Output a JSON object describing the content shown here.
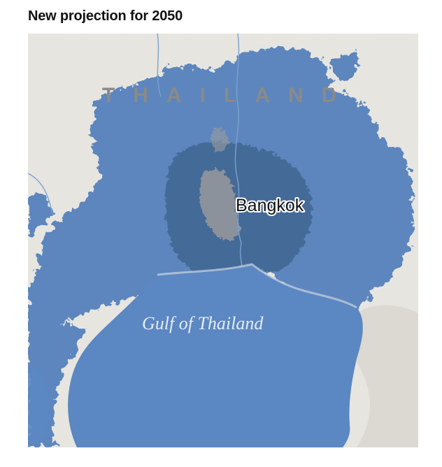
{
  "header": {
    "title": "New projection for 2050"
  },
  "map": {
    "country_label": "THAILAND",
    "city_label": "Bangkok",
    "water_label": "Gulf of Thailand",
    "colors": {
      "land": "#e6e4df",
      "flood_projection": "#5b86bd",
      "flood_dense": "#3f6590",
      "urban": "#9c9c9c",
      "gulf": "#5b87c2",
      "river": "#7aa2d2"
    }
  }
}
